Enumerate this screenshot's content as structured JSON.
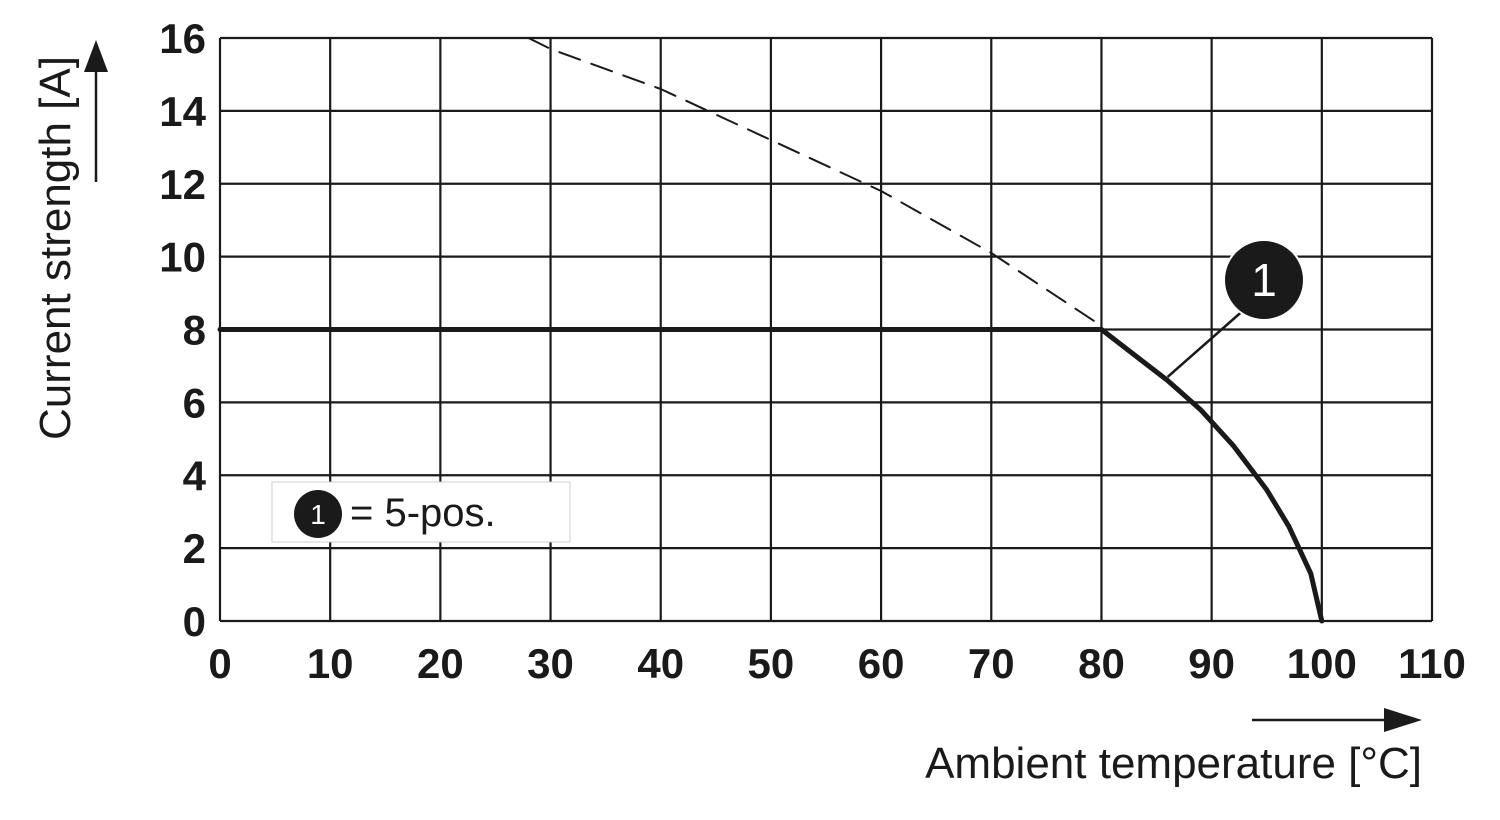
{
  "chart_data": {
    "type": "line",
    "xlabel": "Ambient temperature [°C]",
    "ylabel": "Current strength [A]",
    "xlim": [
      0,
      110
    ],
    "ylim": [
      0,
      16
    ],
    "x_ticks": [
      0,
      10,
      20,
      30,
      40,
      50,
      60,
      70,
      80,
      90,
      100,
      110
    ],
    "y_ticks": [
      0,
      2,
      4,
      6,
      8,
      10,
      12,
      14,
      16
    ],
    "grid": true,
    "series": [
      {
        "name": "5-pos.",
        "line_style": "solid",
        "x": [
          0,
          80,
          83,
          86,
          89,
          92,
          95,
          97,
          99,
          100
        ],
        "y": [
          8,
          8,
          7.3,
          6.6,
          5.8,
          4.8,
          3.6,
          2.6,
          1.3,
          0
        ]
      },
      {
        "line_style": "dashed",
        "x": [
          28,
          30,
          40,
          50,
          60,
          70,
          80
        ],
        "y": [
          16,
          15.7,
          14.6,
          13.2,
          11.8,
          10.1,
          8.1
        ]
      }
    ],
    "annotations": [
      {
        "label": "1",
        "points_to": {
          "x": 86,
          "y": 6.7
        }
      }
    ],
    "legend": {
      "placement": "bottom-left",
      "marker": "1",
      "text": "= 5-pos."
    },
    "colors": {
      "line": "#1a1a1a",
      "grid": "#1a1a1a",
      "background": "#ffffff",
      "marker_fill": "#1a1a1a"
    }
  }
}
